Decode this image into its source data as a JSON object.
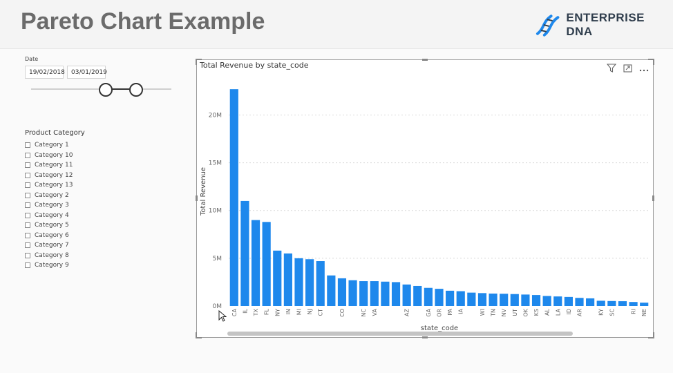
{
  "header": {
    "title": "Pareto Chart Example",
    "logo_text": "ENTERPRISE DNA",
    "logo_icon": "dna-helix-icon"
  },
  "date_filter": {
    "label": "Date",
    "start": "19/02/2018",
    "end": "03/01/2019"
  },
  "category_filter": {
    "title": "Product Category",
    "items": [
      "Category 1",
      "Category 10",
      "Category 11",
      "Category 12",
      "Category 13",
      "Category 2",
      "Category 3",
      "Category 4",
      "Category 5",
      "Category 6",
      "Category 7",
      "Category 8",
      "Category 9"
    ]
  },
  "visual_icons": [
    "filter-icon",
    "focus-mode-icon",
    "more-options-icon"
  ],
  "colors": {
    "bar": "#1e88ec",
    "title": "#6b6b6b"
  },
  "chart_data": {
    "type": "bar",
    "title": "Total Revenue by state_code",
    "xlabel": "state_code",
    "ylabel": "Total Revenue",
    "ylim": [
      0,
      23000000
    ],
    "yticks": [
      0,
      5000000,
      10000000,
      15000000,
      20000000
    ],
    "ytick_labels": [
      "0M",
      "5M",
      "10M",
      "15M",
      "20M"
    ],
    "grid": true,
    "categories": [
      "CA",
      "IL",
      "TX",
      "FL",
      "NY",
      "IN",
      "MI",
      "NJ",
      "CT",
      "",
      "CO",
      "",
      "NC",
      "VA",
      "",
      "",
      "AZ",
      "",
      "GA",
      "OR",
      "PA",
      "IA",
      "",
      "WI",
      "TN",
      "NV",
      "UT",
      "OK",
      "KS",
      "AL",
      "LA",
      "ID",
      "AR",
      "",
      "KY",
      "SC",
      "",
      "RI",
      "NE"
    ],
    "values": [
      22700000,
      11000000,
      9000000,
      8800000,
      5800000,
      5500000,
      5000000,
      4900000,
      4700000,
      3200000,
      2900000,
      2700000,
      2600000,
      2600000,
      2550000,
      2500000,
      2250000,
      2100000,
      1900000,
      1800000,
      1600000,
      1550000,
      1400000,
      1350000,
      1300000,
      1280000,
      1250000,
      1200000,
      1150000,
      1050000,
      1000000,
      950000,
      850000,
      800000,
      550000,
      520000,
      500000,
      420000,
      350000
    ]
  }
}
